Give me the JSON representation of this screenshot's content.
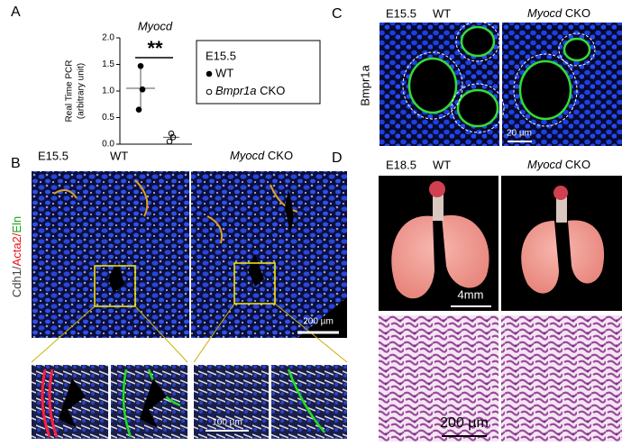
{
  "chart_data": {
    "type": "scatter",
    "panel": "A",
    "title": "Myocd",
    "annotation": "**",
    "ylabel": [
      "Real Time PCR",
      "(arbitrary unit)"
    ],
    "legend_title": "E15.5",
    "series": [
      {
        "name": "WT",
        "color": "#000000",
        "fill": "#000000",
        "values": [
          1.47,
          1.03,
          0.65
        ],
        "mean": 1.05,
        "error": 0.42
      },
      {
        "name": "Bmpr1a CKO",
        "color": "#000000",
        "fill": "none",
        "values": [
          0.2,
          0.13,
          0.05
        ],
        "mean": 0.13,
        "error": 0.07
      }
    ],
    "ylim": [
      0,
      2
    ],
    "yticks": [
      {
        "value": 0,
        "label": "0.0"
      },
      {
        "value": 0.5,
        "label": "0.5"
      },
      {
        "value": 1,
        "label": "1.0"
      },
      {
        "value": 1.5,
        "label": "1.5"
      },
      {
        "value": 2,
        "label": "2.0"
      }
    ]
  },
  "panels": {
    "B": {
      "letter": "B",
      "stage": "E15.5",
      "wt": "WT",
      "cko": "Myocd CKO",
      "stains": [
        {
          "label": "Cdh1/",
          "color": "#444444"
        },
        {
          "label": "Acta2/",
          "color": "#e8141c"
        },
        {
          "label": "Eln",
          "color": "#1aa31a"
        }
      ],
      "scale_large": "200 µm",
      "scale_small": "100 µm"
    },
    "C": {
      "letter": "C",
      "stage": "E15.5",
      "wt": "WT",
      "cko": "Myocd CKO",
      "stain": "Bmpr1a",
      "stain_color": "#22cc22",
      "scale": "20 µm"
    },
    "D": {
      "letter": "D",
      "stage": "E18.5",
      "wt": "WT",
      "cko": "Myocd CKO",
      "scale_gross": "4mm",
      "scale_histo": "200 µm"
    }
  }
}
